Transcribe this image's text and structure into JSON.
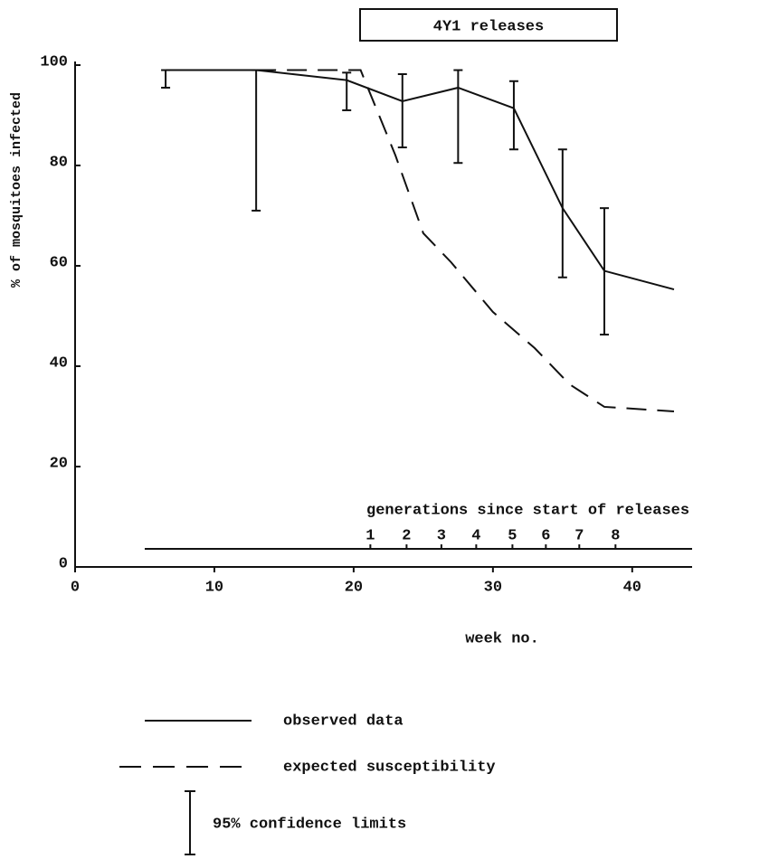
{
  "chart_data": {
    "type": "line",
    "title": "4Y1 releases",
    "xlabel": "week no.",
    "ylabel": "% of mosquitoes infected",
    "xlim": [
      0,
      44.3
    ],
    "ylim": [
      0,
      100
    ],
    "xticks": [
      0,
      10,
      20,
      30,
      40
    ],
    "yticks": [
      0,
      20,
      40,
      60,
      80,
      100
    ],
    "series": [
      {
        "name": "observed data",
        "color": "#111111",
        "dash": false,
        "x": [
          6.5,
          13,
          19.5,
          23.5,
          27.5,
          31.5,
          35,
          38,
          43
        ],
        "values": [
          99,
          99,
          97,
          92.8,
          95.5,
          91.4,
          71.5,
          59,
          55.3
        ],
        "ci_lower": [
          95.5,
          71,
          91,
          83.6,
          80.5,
          83.2,
          57.7,
          46.3,
          null
        ],
        "ci_upper": [
          99,
          99,
          98.5,
          98.2,
          99,
          96.8,
          83.2,
          71.5,
          null
        ]
      },
      {
        "name": "expected susceptibility",
        "color": "#111111",
        "dash": true,
        "x": [
          13,
          20.5,
          23,
          25,
          27,
          30,
          33,
          35.5,
          38,
          43
        ],
        "values": [
          99,
          99,
          82,
          66.5,
          60.7,
          50.8,
          43.6,
          36.4,
          31.9,
          31
        ]
      }
    ],
    "ci_label": "95% confidence limits",
    "generations": {
      "label": "generations since start of releases",
      "level": 3.6,
      "xlim": [
        5,
        44.3
      ],
      "ticks": [
        {
          "value": 21.2,
          "label": "1"
        },
        {
          "value": 23.8,
          "label": "2"
        },
        {
          "value": 26.3,
          "label": "3"
        },
        {
          "value": 28.8,
          "label": "4"
        },
        {
          "value": 31.4,
          "label": "5"
        },
        {
          "value": 33.8,
          "label": "6"
        },
        {
          "value": 36.2,
          "label": "7"
        },
        {
          "value": 38.8,
          "label": "8"
        }
      ]
    }
  }
}
